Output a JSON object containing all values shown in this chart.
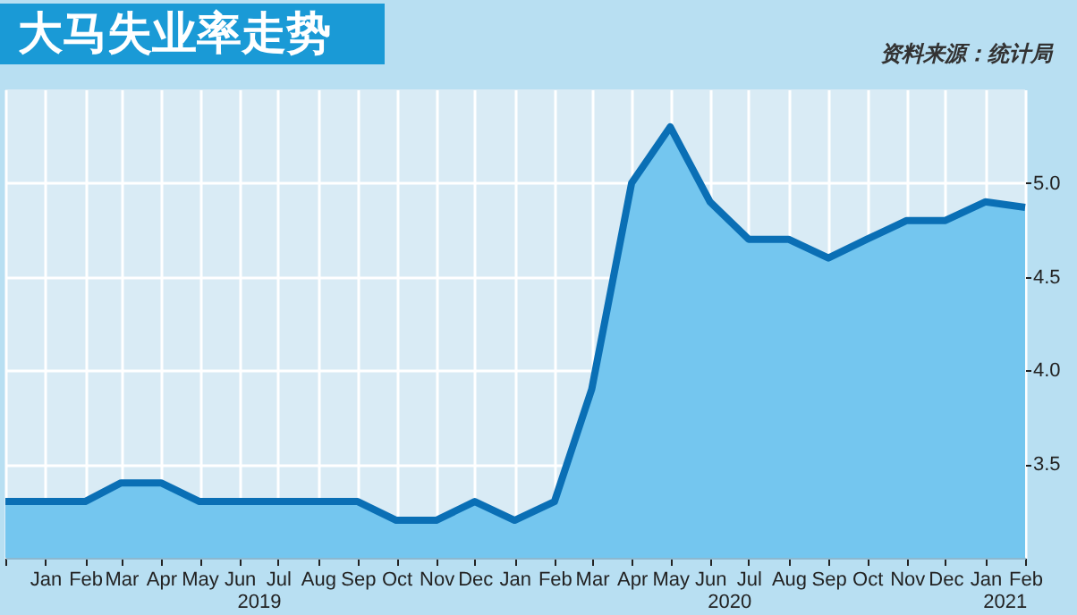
{
  "chart_data": {
    "type": "area",
    "title": "大马失业率走势",
    "annotations": [
      "资料来源：统计局",
      "2019",
      "2020",
      "2021"
    ],
    "x": [
      "2018-12",
      "2019-01",
      "2019-02",
      "2019-03",
      "2019-04",
      "2019-05",
      "2019-06",
      "2019-07",
      "2019-08",
      "2019-09",
      "2019-10",
      "2019-11",
      "2019-12",
      "2020-01",
      "2020-02",
      "2020-03",
      "2020-04",
      "2020-05",
      "2020-06",
      "2020-07",
      "2020-08",
      "2020-09",
      "2020-10",
      "2020-11",
      "2020-12",
      "2021-01",
      "2021-02"
    ],
    "series": [
      {
        "color": "#74c6ef",
        "values": [
          3.3,
          3.3,
          3.3,
          3.4,
          3.4,
          3.3,
          3.3,
          3.3,
          3.3,
          3.3,
          3.2,
          3.2,
          3.3,
          3.2,
          3.3,
          3.9,
          5.0,
          5.3,
          4.9,
          4.7,
          4.7,
          4.6,
          4.7,
          4.8,
          4.8,
          4.9,
          4.87
        ]
      }
    ],
    "xlim": [
      "2018-12",
      "2021-02"
    ],
    "xticks": [
      {
        "value": "2018-12",
        "label": null
      },
      {
        "value": "2019-01",
        "label": "Jan"
      },
      {
        "value": "2019-02",
        "label": "Feb"
      },
      {
        "value": "2019-03",
        "label": "Mar"
      },
      {
        "value": "2019-04",
        "label": "Apr"
      },
      {
        "value": "2019-05",
        "label": "May"
      },
      {
        "value": "2019-06",
        "label": "Jun"
      },
      {
        "value": "2019-07",
        "label": "Jul"
      },
      {
        "value": "2019-08",
        "label": "Aug"
      },
      {
        "value": "2019-09",
        "label": "Sep"
      },
      {
        "value": "2019-10",
        "label": "Oct"
      },
      {
        "value": "2019-11",
        "label": "Nov"
      },
      {
        "value": "2019-12",
        "label": "Dec"
      },
      {
        "value": "2020-01",
        "label": "Jan"
      },
      {
        "value": "2020-02",
        "label": "Feb"
      },
      {
        "value": "2020-03",
        "label": "Mar"
      },
      {
        "value": "2020-04",
        "label": "Apr"
      },
      {
        "value": "2020-05",
        "label": "May"
      },
      {
        "value": "2020-06",
        "label": "Jun"
      },
      {
        "value": "2020-07",
        "label": "Jul"
      },
      {
        "value": "2020-08",
        "label": "Aug"
      },
      {
        "value": "2020-09",
        "label": "Sep"
      },
      {
        "value": "2020-10",
        "label": "Oct"
      },
      {
        "value": "2020-11",
        "label": "Nov"
      },
      {
        "value": "2020-12",
        "label": "Dec"
      },
      {
        "value": "2021-01",
        "label": "Jan"
      },
      {
        "value": "2021-02",
        "label": "Feb"
      }
    ],
    "ylim": [
      3.0,
      5.5
    ],
    "yticks": [
      3.5,
      {
        "value": 4,
        "label": "4.0"
      },
      4.5,
      {
        "value": 5,
        "label": "5.0"
      }
    ],
    "grid": true
  }
}
